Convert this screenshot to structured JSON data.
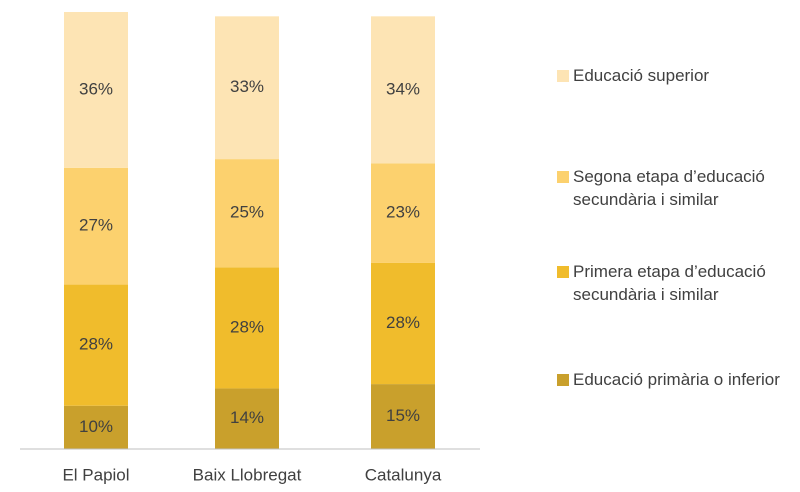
{
  "chart_data": {
    "type": "stacked_bar",
    "categories": [
      "El Papiol",
      "Baix Llobregat",
      "Catalunya"
    ],
    "series": [
      {
        "name": "Educació primària o inferior",
        "color": "#c9a02c",
        "values": [
          10,
          14,
          15
        ],
        "value_labels": [
          "10%",
          "14%",
          "15%"
        ]
      },
      {
        "name": "Primera etapa d’educació secundària i similar",
        "color": "#f0bc2c",
        "values": [
          28,
          28,
          28
        ],
        "value_labels": [
          "28%",
          "28%",
          "28%"
        ]
      },
      {
        "name": "Segona etapa d’educació secundària i similar",
        "color": "#fcd16e",
        "values": [
          27,
          25,
          23
        ],
        "value_labels": [
          "27%",
          "25%",
          "23%"
        ]
      },
      {
        "name": "Educació superior",
        "color": "#fde4b4",
        "values": [
          36,
          33,
          34
        ],
        "value_labels": [
          "36%",
          "33%",
          "34%"
        ]
      }
    ],
    "legend": "right"
  }
}
